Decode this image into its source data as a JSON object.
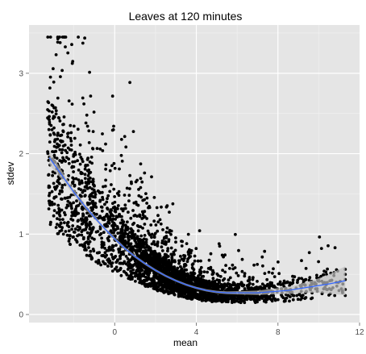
{
  "chart_data": {
    "type": "scatter",
    "title": "Leaves at 120 minutes",
    "xlabel": "mean",
    "ylabel": "stdev",
    "xlim": [
      -4.2,
      12.0
    ],
    "ylim": [
      -0.1,
      3.6
    ],
    "x_ticks": [
      0,
      4,
      8,
      12
    ],
    "y_ticks": [
      0,
      1,
      2,
      3
    ],
    "grid": true,
    "panel_background": "#e5e5e5",
    "point_color": "#000000",
    "smooth_color": "#3366ff",
    "band_color": "#bfbfbf",
    "point_count": 3000,
    "smooth": {
      "method": "loess",
      "x": [
        -3.2,
        -2.5,
        -2.0,
        -1.5,
        -1.0,
        -0.5,
        0.0,
        0.5,
        1.0,
        1.5,
        2.0,
        2.5,
        3.0,
        3.5,
        4.0,
        4.5,
        5.0,
        5.5,
        6.0,
        6.5,
        7.0,
        7.5,
        8.0,
        8.5,
        9.0,
        9.5,
        10.0,
        10.5,
        11.3
      ],
      "y": [
        1.95,
        1.7,
        1.52,
        1.36,
        1.21,
        1.07,
        0.94,
        0.82,
        0.72,
        0.63,
        0.55,
        0.48,
        0.42,
        0.37,
        0.33,
        0.3,
        0.28,
        0.27,
        0.27,
        0.27,
        0.27,
        0.28,
        0.29,
        0.3,
        0.32,
        0.34,
        0.36,
        0.38,
        0.42
      ],
      "band_halfwidth": [
        0.09,
        0.05,
        0.035,
        0.03,
        0.025,
        0.022,
        0.02,
        0.018,
        0.016,
        0.015,
        0.014,
        0.013,
        0.013,
        0.013,
        0.013,
        0.014,
        0.015,
        0.017,
        0.02,
        0.023,
        0.027,
        0.032,
        0.038,
        0.045,
        0.055,
        0.07,
        0.09,
        0.12,
        0.18
      ]
    }
  }
}
